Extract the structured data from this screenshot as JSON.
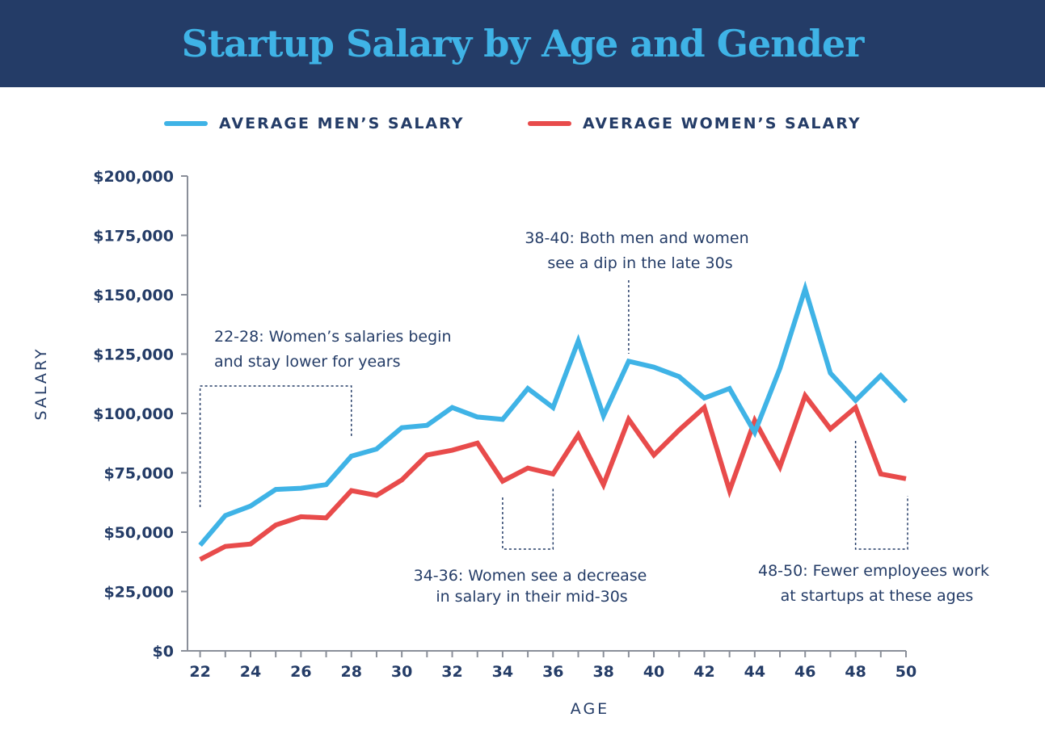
{
  "header": {
    "title": "Startup Salary by Age and Gender"
  },
  "colors": {
    "header_bg": "#243c67",
    "title": "#3fb3e6",
    "men": "#3fb3e6",
    "women": "#e84b4b",
    "text": "#243c67"
  },
  "legend": {
    "position": "top-center",
    "items": [
      {
        "label": "AVERAGE MEN’S SALARY",
        "color": "#3fb3e6"
      },
      {
        "label": "AVERAGE WOMEN’S SALARY",
        "color": "#e84b4b"
      }
    ]
  },
  "chart_data": {
    "type": "line",
    "title": "Startup Salary by Age and Gender",
    "xlabel": "AGE",
    "ylabel": "SALARY",
    "xlim": [
      21.5,
      50
    ],
    "ylim": [
      0,
      200000
    ],
    "x_ticks": [
      22,
      24,
      26,
      28,
      30,
      32,
      34,
      36,
      38,
      40,
      42,
      44,
      46,
      48,
      50
    ],
    "y_ticks": [
      0,
      25000,
      50000,
      75000,
      100000,
      125000,
      150000,
      175000,
      200000
    ],
    "y_tick_labels": [
      "$0",
      "$25,000",
      "$50,000",
      "$75,000",
      "$100,000",
      "$125,000",
      "$150,000",
      "$175,000",
      "$200,000"
    ],
    "grid": false,
    "x": [
      22,
      23,
      24,
      25,
      26,
      27,
      28,
      29,
      30,
      31,
      32,
      33,
      34,
      35,
      36,
      37,
      38,
      39,
      40,
      41,
      42,
      43,
      44,
      45,
      46,
      47,
      48,
      49,
      50
    ],
    "series": [
      {
        "name": "AVERAGE MEN’S SALARY",
        "color": "#3fb3e6",
        "values": [
          44500,
          57000,
          61000,
          68000,
          68500,
          70000,
          82000,
          85000,
          94000,
          95000,
          102500,
          98500,
          97500,
          110500,
          102500,
          130500,
          99000,
          122000,
          119500,
          115500,
          106500,
          110500,
          92000,
          119000,
          152500,
          117000,
          105500,
          116000,
          105000
        ]
      },
      {
        "name": "AVERAGE WOMEN’S SALARY",
        "color": "#e84b4b",
        "values": [
          38500,
          44000,
          45000,
          53000,
          56500,
          56000,
          67500,
          65500,
          72000,
          82500,
          84500,
          87500,
          71500,
          77000,
          74500,
          91000,
          70000,
          97500,
          82500,
          93000,
          102500,
          67500,
          97000,
          77500,
          107500,
          93500,
          102500,
          74500,
          72500
        ]
      }
    ],
    "annotations": [
      {
        "id": "a2228",
        "range": [
          22,
          28
        ],
        "lines": [
          "22-28: Women’s salaries begin",
          "and stay lower for years"
        ]
      },
      {
        "id": "a3840",
        "age": 39,
        "lines": [
          "38-40: Both men and women",
          "see a dip in the late 30s"
        ]
      },
      {
        "id": "a3436",
        "range": [
          34,
          36
        ],
        "lines": [
          "34-36: Women see a decrease",
          "in salary in their mid-30s"
        ]
      },
      {
        "id": "a4850",
        "range": [
          48,
          50
        ],
        "lines": [
          "48-50: Fewer employees work",
          "at startups at these ages"
        ]
      }
    ]
  }
}
